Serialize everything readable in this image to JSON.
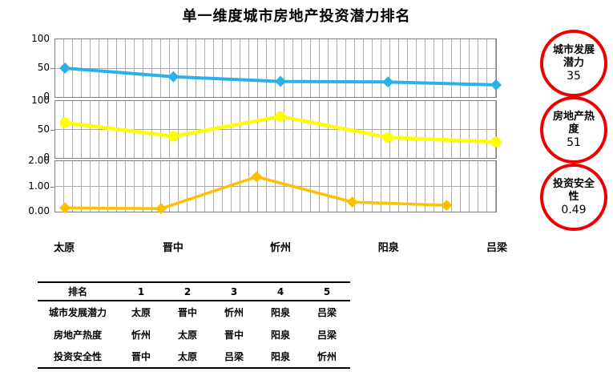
{
  "title": "单一维度城市房地产投资潜力排名",
  "chart_data": {
    "type": "line",
    "subtype": "three-stacked-panels",
    "categories": [
      "太原",
      "晋中",
      "忻州",
      "阳泉",
      "吕梁"
    ],
    "grid": "dense-minor-vertical-gridlines-on",
    "legend": "none",
    "series": [
      {
        "name": "城市发展潜力",
        "color": "#29b2e8",
        "marker": "diamond",
        "values": [
          50,
          35,
          27,
          26,
          21
        ],
        "ylim": [
          0,
          100
        ],
        "yticks": [
          "100",
          "50",
          "0"
        ],
        "x_fractions": [
          0.022,
          0.268,
          0.511,
          0.755,
          1.0
        ],
        "line_width": 4
      },
      {
        "name": "房地产热度",
        "color": "#ffff00",
        "marker": "circle",
        "values": [
          62,
          38,
          73,
          36,
          28
        ],
        "ylim": [
          0,
          100
        ],
        "yticks": [
          "100",
          "50",
          "0"
        ],
        "x_fractions": [
          0.022,
          0.268,
          0.511,
          0.755,
          1.0
        ],
        "line_width": 4.5
      },
      {
        "name": "投资安全性",
        "color": "#ffc000",
        "marker": "diamond",
        "values": [
          0.15,
          0.12,
          1.38,
          0.38,
          0.25
        ],
        "ylim": [
          0,
          2
        ],
        "yticks": [
          "2.00",
          "1.00",
          "0.00"
        ],
        "x_fractions": [
          0.022,
          0.24,
          0.457,
          0.674,
          0.888
        ],
        "line_width": 3.5
      }
    ],
    "title": "单一维度城市房地产投资潜力排名",
    "xlabel": "",
    "ylabel": ""
  },
  "badges": [
    {
      "label": "城市发展潜力",
      "value": "35"
    },
    {
      "label": "房地产热度",
      "value": "51"
    },
    {
      "label": "投资安全性",
      "value": "0.49"
    }
  ],
  "badge_tops": [
    37,
    120,
    204
  ],
  "ranking_table": {
    "header": [
      "排名",
      "1",
      "2",
      "3",
      "4",
      "5"
    ],
    "rows": [
      {
        "label": "城市发展潜力",
        "cells": [
          "太原",
          "晋中",
          "忻州",
          "阳泉",
          "吕梁"
        ]
      },
      {
        "label": "房地产热度",
        "cells": [
          "忻州",
          "太原",
          "晋中",
          "阳泉",
          "吕梁"
        ]
      },
      {
        "label": "投资安全性",
        "cells": [
          "晋中",
          "太原",
          "吕梁",
          "阳泉",
          "忻州"
        ]
      }
    ]
  },
  "colors": {
    "circle_border": "#ee0000",
    "gridline": "#b0b0b0",
    "axis_border": "#808080"
  }
}
